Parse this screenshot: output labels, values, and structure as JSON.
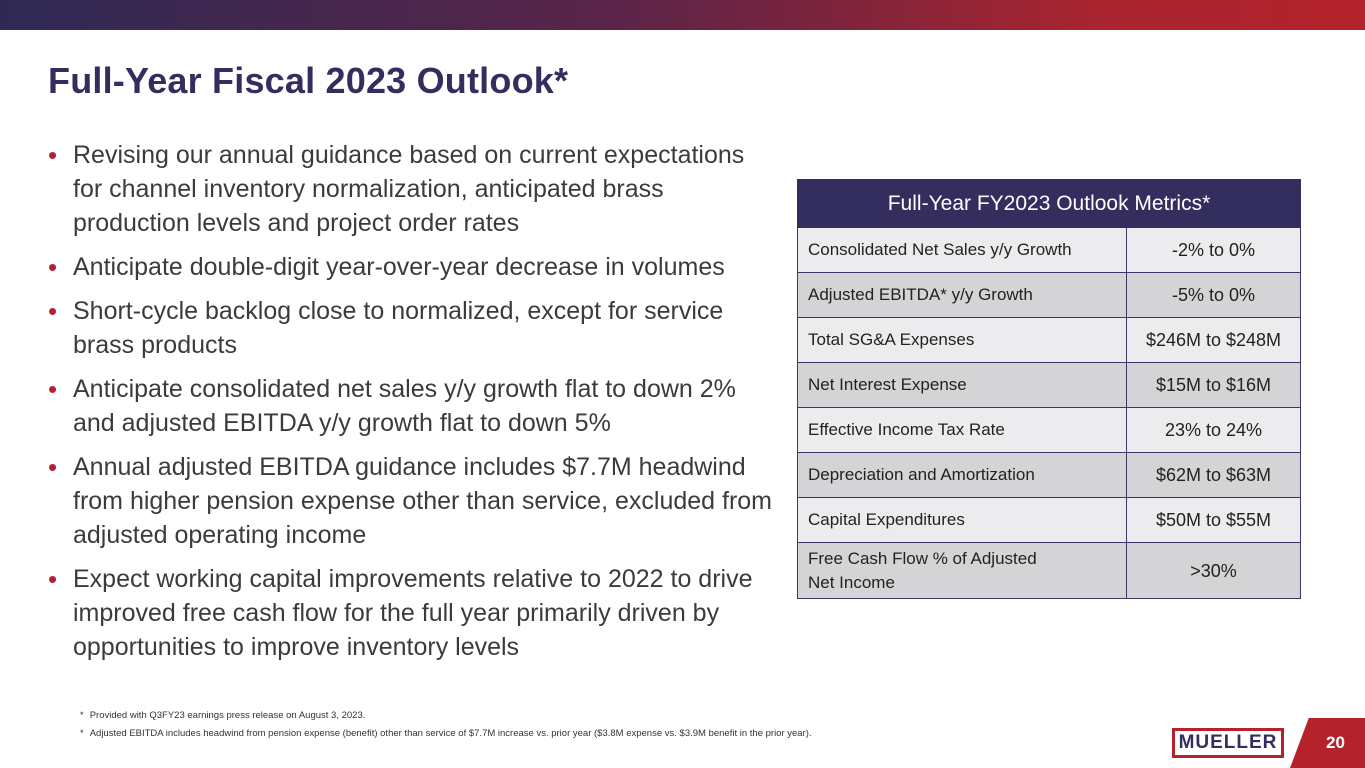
{
  "slide": {
    "title": "Full-Year Fiscal 2023 Outlook*",
    "page_number": "20"
  },
  "bullets": [
    "Revising our annual guidance based on current expectations for channel inventory normalization, anticipated brass production levels and project order rates",
    "Anticipate double-digit year-over-year decrease in volumes",
    "Short-cycle backlog close to normalized, except for service brass products",
    "Anticipate consolidated net sales y/y growth flat to down 2% and adjusted EBITDA y/y growth flat to down 5%",
    "Annual adjusted EBITDA guidance includes $7.7M headwind from higher pension expense other than service, excluded from adjusted operating income",
    "Expect working capital improvements relative to 2022 to drive improved free cash flow for the full year primarily driven by opportunities to improve inventory levels"
  ],
  "table": {
    "header": "Full-Year FY2023 Outlook Metrics*",
    "rows": [
      {
        "label": "Consolidated Net Sales y/y Growth",
        "value": "-2% to 0%"
      },
      {
        "label": "Adjusted EBITDA* y/y Growth",
        "value": "-5% to 0%"
      },
      {
        "label": "Total SG&A Expenses",
        "value": "$246M to $248M"
      },
      {
        "label": "Net Interest Expense",
        "value": "$15M to $16M"
      },
      {
        "label": "Effective Income Tax Rate",
        "value": "23% to 24%"
      },
      {
        "label": "Depreciation and Amortization",
        "value": "$62M to $63M"
      },
      {
        "label": "Capital Expenditures",
        "value": "$50M to $55M"
      },
      {
        "label_line1": "Free Cash Flow % of Adjusted",
        "label_line2": "Net Income",
        "value": ">30%"
      }
    ]
  },
  "footnotes": [
    {
      "mark": "*",
      "text": "Provided with Q3FY23 earnings press release on August 3, 2023."
    },
    {
      "mark": "*",
      "text": "Adjusted EBITDA includes headwind from pension expense (benefit) other than service of $7.7M increase vs. prior year ($3.8M expense vs. $3.9M benefit in the prior year)."
    }
  ],
  "logo": {
    "text": "MUELLER"
  },
  "colors": {
    "navy": "#332e5e",
    "accent_red": "#b4232c",
    "row_dark": "#d4d4d7",
    "row_light": "#ececee"
  }
}
